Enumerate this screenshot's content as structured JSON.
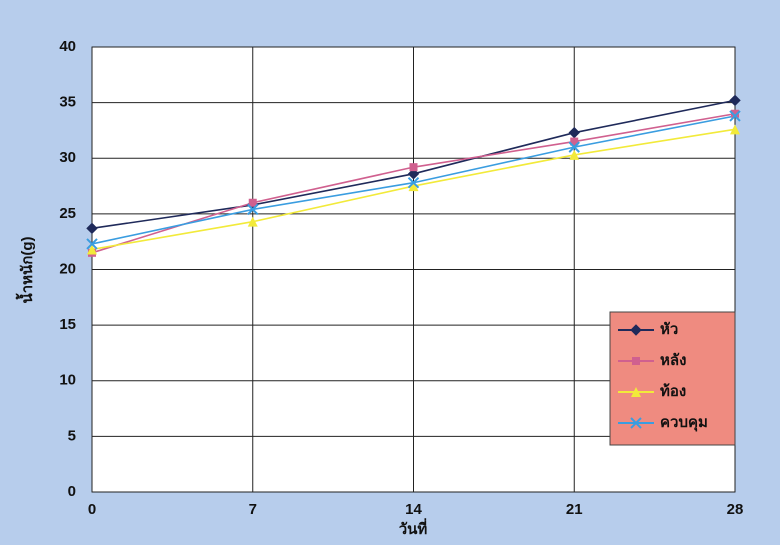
{
  "chart_data": {
    "type": "line",
    "x_label": "วันที่",
    "y_label": "น้ำหนัก(g)",
    "x": [
      0,
      7,
      14,
      21,
      28
    ],
    "xlim": [
      0,
      28
    ],
    "xticks": [
      0,
      7,
      14,
      21,
      28
    ],
    "ylim": [
      0,
      40
    ],
    "yticks": [
      0,
      5,
      10,
      15,
      20,
      25,
      30,
      35,
      40
    ],
    "grid": true,
    "legend": "right",
    "series": [
      {
        "name": "หัว",
        "color": "#1f2a5a",
        "marker": "diamond",
        "values": [
          23.7,
          25.8,
          28.6,
          32.3,
          35.2
        ]
      },
      {
        "name": "หลัง",
        "color": "#d0608f",
        "marker": "square",
        "values": [
          21.5,
          26.0,
          29.2,
          31.5,
          34.0
        ]
      },
      {
        "name": "ท้อง",
        "color": "#f2ea3a",
        "marker": "triangle",
        "values": [
          21.8,
          24.3,
          27.5,
          30.3,
          32.6
        ]
      },
      {
        "name": "ควบคุม",
        "color": "#3a9de0",
        "marker": "x",
        "values": [
          22.3,
          25.4,
          27.8,
          31.0,
          33.8
        ]
      }
    ]
  }
}
